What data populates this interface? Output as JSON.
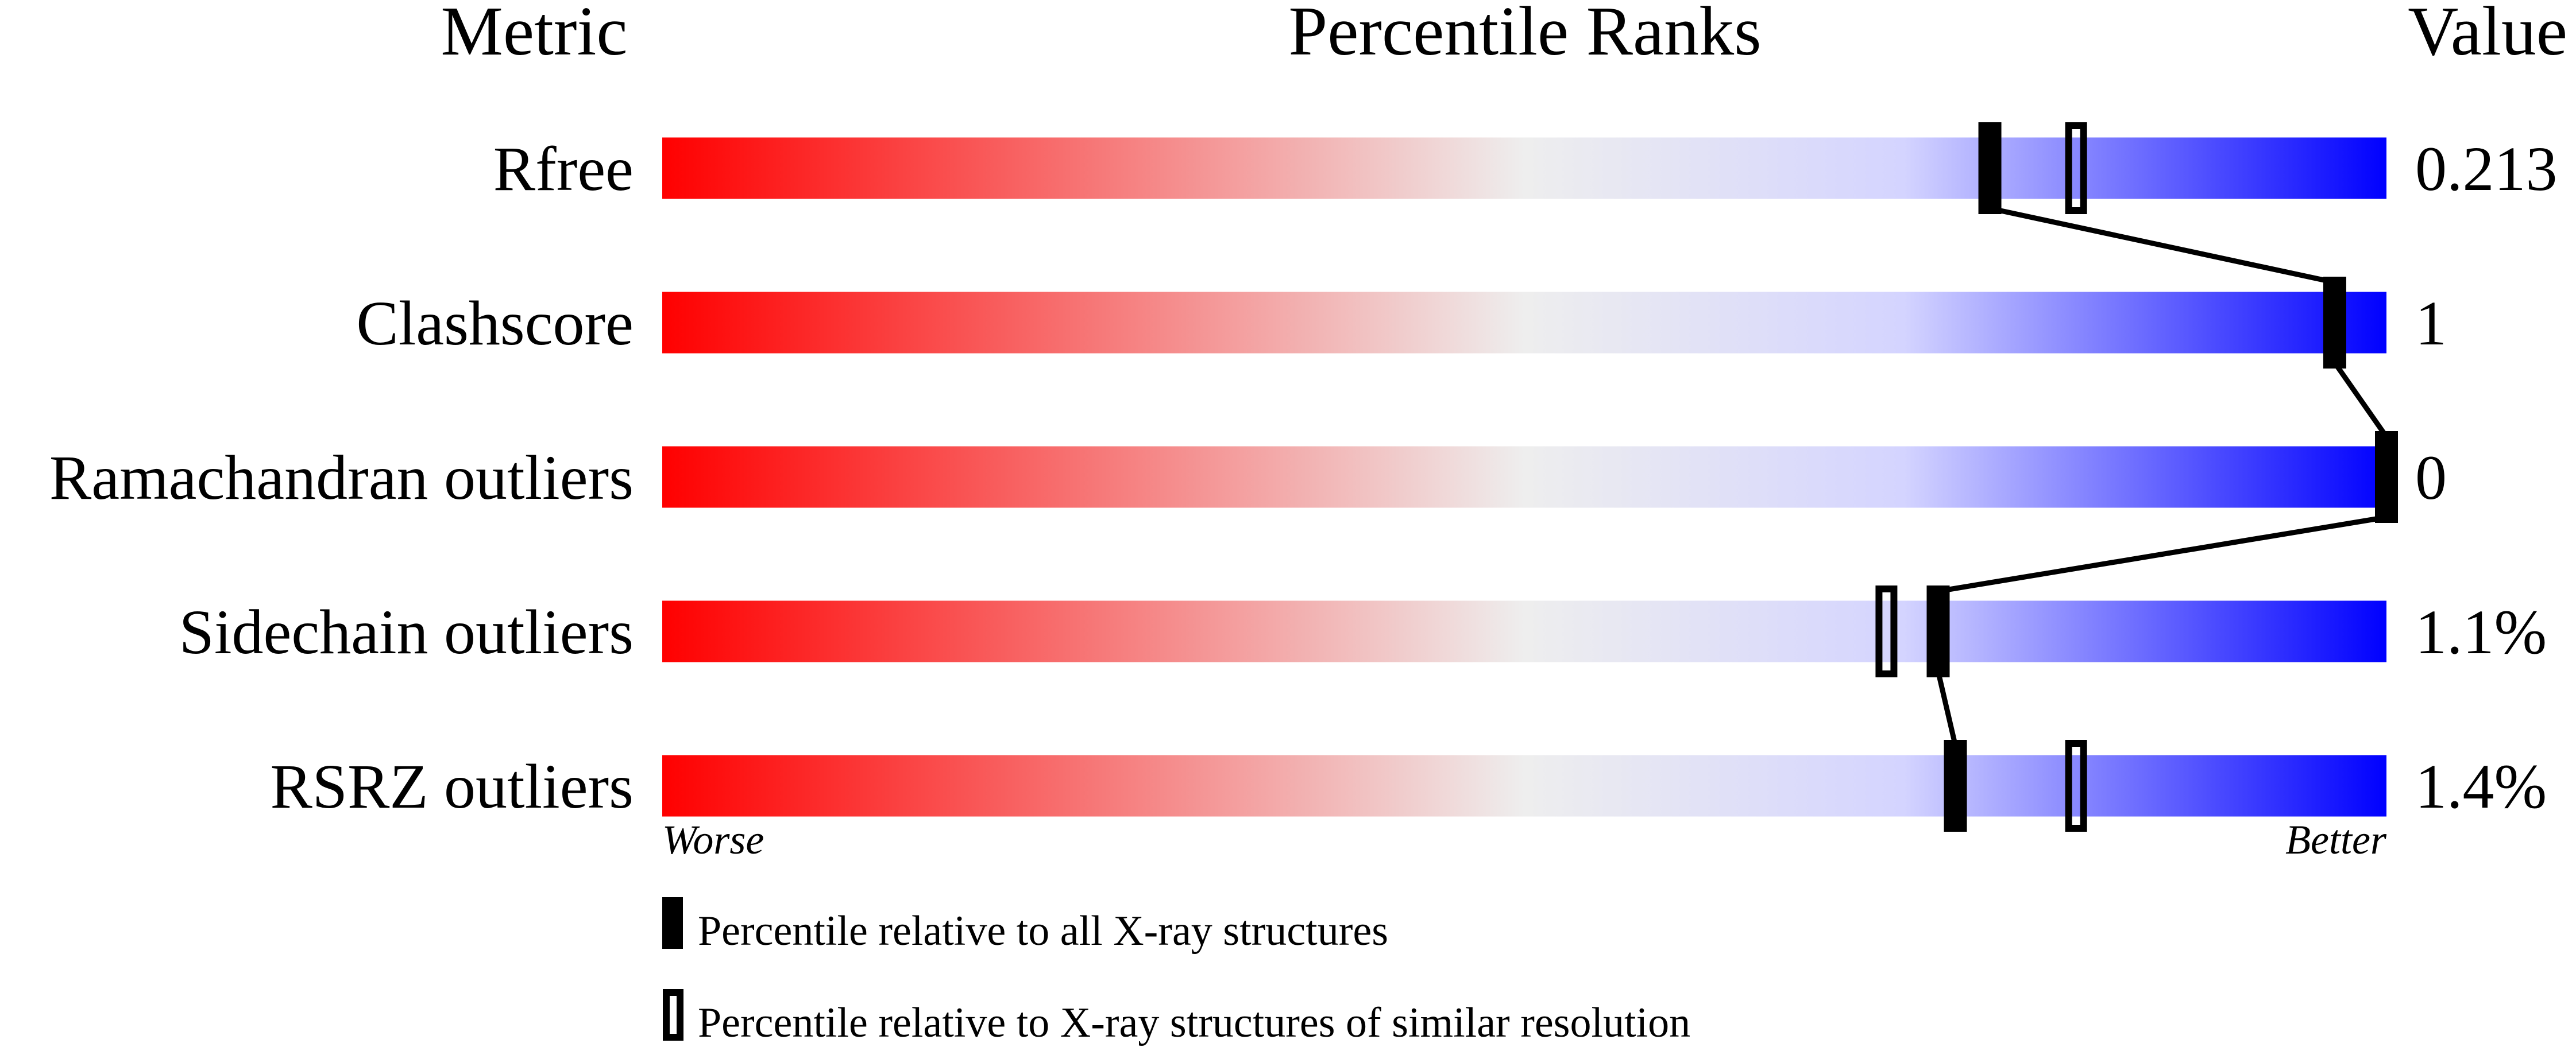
{
  "chart_data": {
    "type": "bar",
    "headers": {
      "metric": "Metric",
      "ranks": "Percentile Ranks",
      "value": "Value"
    },
    "xlim": [
      0,
      100
    ],
    "gradient_colors": {
      "worse": "#ff0000",
      "middle": "#eeeeee",
      "light_blue": "#d4d4ff",
      "better": "#0000ff"
    },
    "metrics": [
      {
        "name": "Rfree",
        "value": "0.213",
        "percentile_all": 77,
        "percentile_similar": 82
      },
      {
        "name": "Clashscore",
        "value": "1",
        "percentile_all": 97
      },
      {
        "name": "Ramachandran outliers",
        "value": "0",
        "percentile_all": 100
      },
      {
        "name": "Sidechain outliers",
        "value": "1.1%",
        "percentile_all": 74,
        "percentile_similar": 71
      },
      {
        "name": "RSRZ outliers",
        "value": "1.4%",
        "percentile_all": 75,
        "percentile_similar": 82
      }
    ],
    "axis_labels": {
      "left": "Worse",
      "right": "Better"
    },
    "legend": [
      {
        "marker": "filled",
        "label": "Percentile relative to all X-ray structures"
      },
      {
        "marker": "open",
        "label": "Percentile relative to X-ray structures of similar resolution"
      }
    ]
  }
}
